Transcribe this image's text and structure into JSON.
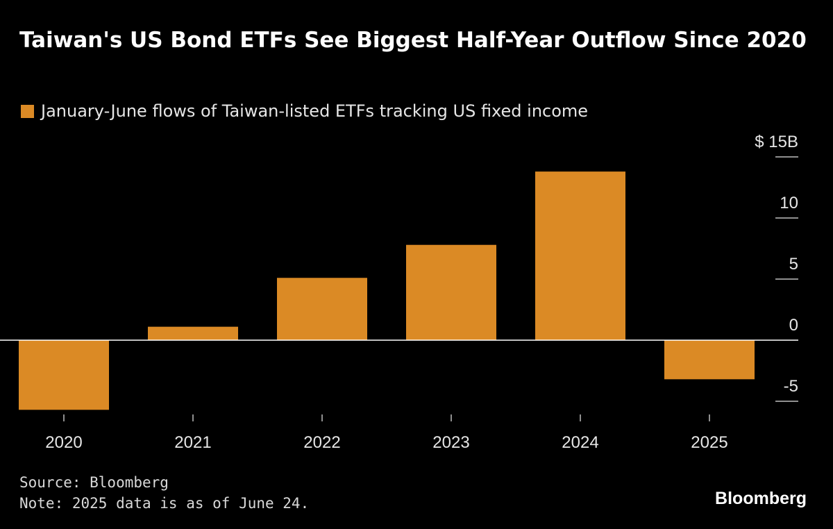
{
  "chart_data": {
    "type": "bar",
    "title": "Taiwan's US Bond ETFs See Biggest Half-Year Outflow Since 2020",
    "categories": [
      "2020",
      "2021",
      "2022",
      "2023",
      "2024",
      "2025"
    ],
    "series": [
      {
        "name": "January-June flows of Taiwan-listed ETFs tracking US fixed income",
        "values": [
          -5.7,
          1.1,
          5.1,
          7.8,
          13.8,
          -3.2
        ]
      }
    ],
    "yunit": "$",
    "ylim": [
      -6.5,
      15
    ],
    "yticks": [
      15,
      10,
      5,
      0,
      -5
    ],
    "ytick_labels": [
      "$ 15B",
      "10",
      "5",
      "0",
      "-5"
    ],
    "grid": false,
    "legend_position": "top-left",
    "colors": {
      "bar": "#DB8A25",
      "background": "#000000",
      "zero_line": "#ffffff"
    }
  },
  "footer": {
    "source": "Source: Bloomberg",
    "note": "Note: 2025 data is as of June 24.",
    "brand": "Bloomberg"
  }
}
